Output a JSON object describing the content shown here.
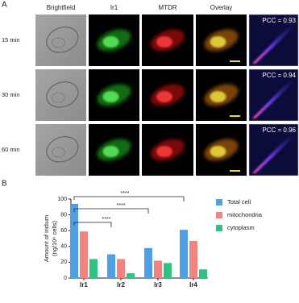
{
  "panel_a": {
    "label": "A",
    "columns": [
      "Brightfield",
      "Ir1",
      "MTDR",
      "Overlay"
    ],
    "rows": [
      "15 min",
      "30 min",
      "60 min"
    ],
    "pcc": [
      "PCC = 0.93",
      "PCC = 0.94",
      "PCC = 0.96"
    ]
  },
  "chart_data": {
    "type": "bar",
    "panel_label": "B",
    "ylabel": [
      "Amount of iridium",
      "(ng/10⁶ cells)"
    ],
    "categories": [
      "Ir1",
      "Ir2",
      "Ir3",
      "Ir4"
    ],
    "series": [
      {
        "name": "Total cell",
        "color": "#4d9fe6",
        "values": [
          94,
          30,
          38,
          61
        ]
      },
      {
        "name": "mitochondria",
        "color": "#f2837f",
        "values": [
          59,
          24,
          22,
          47
        ]
      },
      {
        "name": "cytoplasm",
        "color": "#2fc382",
        "values": [
          24,
          6,
          19,
          11
        ]
      }
    ],
    "ylim": [
      0,
      100
    ],
    "yticks": [
      0,
      20,
      40,
      60,
      80,
      100
    ],
    "annotations": [
      "****",
      "****",
      "****"
    ]
  }
}
